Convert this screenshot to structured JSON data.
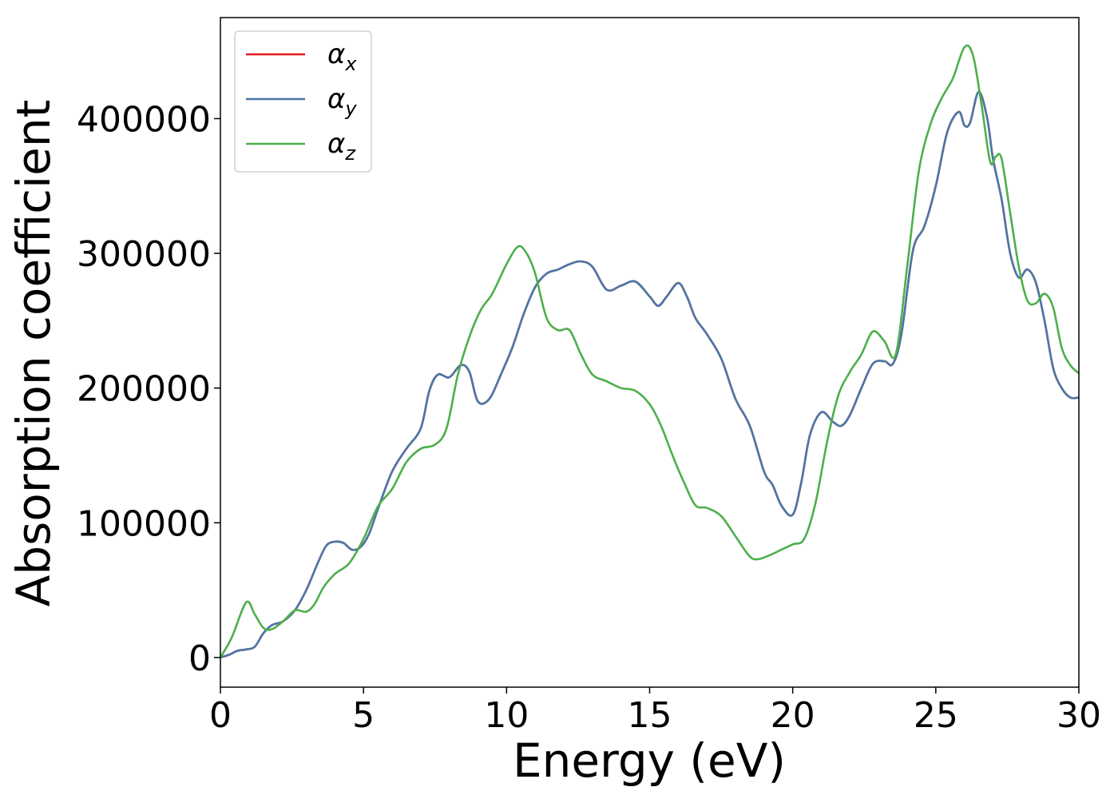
{
  "chart_data": {
    "type": "line",
    "xlabel": "Energy (eV)",
    "ylabel": "Absorption coefficient",
    "xlim": [
      0,
      30
    ],
    "ylim": [
      -22000,
      475000
    ],
    "xticks": [
      0,
      5,
      10,
      15,
      20,
      25,
      30
    ],
    "xtick_labels": [
      "0",
      "5",
      "10",
      "15",
      "20",
      "25",
      "30"
    ],
    "yticks": [
      0,
      100000,
      200000,
      300000,
      400000
    ],
    "ytick_labels": [
      "0",
      "100000",
      "200000",
      "300000",
      "400000"
    ],
    "grid": false,
    "legend_position": "top-left",
    "series": [
      {
        "name": "αx",
        "base": "α",
        "sub": "x",
        "color": "#e41a1c",
        "x": [
          0,
          0.3,
          0.6,
          0.9,
          1.2,
          1.5,
          1.8,
          2.2,
          2.6,
          3.0,
          3.4,
          3.7,
          4.0,
          4.3,
          4.6,
          4.9,
          5.2,
          5.5,
          6.0,
          6.5,
          7.0,
          7.3,
          7.6,
          8.0,
          8.4,
          8.7,
          9.0,
          9.4,
          9.8,
          10.2,
          10.6,
          11.0,
          11.4,
          11.8,
          12.2,
          12.6,
          13.0,
          13.5,
          14.0,
          14.5,
          15.0,
          15.3,
          15.6,
          16.0,
          16.3,
          16.6,
          17.0,
          17.5,
          18.0,
          18.5,
          19.0,
          19.3,
          19.6,
          20.0,
          20.3,
          20.6,
          21.0,
          21.4,
          21.7,
          22.0,
          22.4,
          22.8,
          23.2,
          23.5,
          23.8,
          24.2,
          24.6,
          25.0,
          25.4,
          25.8,
          26.0,
          26.2,
          26.5,
          26.8,
          27.0,
          27.3,
          27.6,
          27.9,
          28.2,
          28.5,
          28.8,
          29.1,
          29.4,
          29.7,
          30.0
        ],
        "y": [
          0,
          2000,
          5000,
          6000,
          8000,
          18000,
          24000,
          27000,
          35000,
          50000,
          70000,
          83000,
          86000,
          85000,
          80000,
          82000,
          92000,
          110000,
          138000,
          155000,
          170000,
          198000,
          210000,
          208000,
          217000,
          212000,
          190000,
          192000,
          210000,
          230000,
          255000,
          275000,
          285000,
          288000,
          292000,
          294000,
          290000,
          273000,
          276000,
          279000,
          268000,
          261000,
          268000,
          278000,
          268000,
          252000,
          240000,
          222000,
          192000,
          172000,
          138000,
          128000,
          113000,
          106000,
          130000,
          165000,
          182000,
          175000,
          172000,
          180000,
          200000,
          218000,
          220000,
          218000,
          240000,
          302000,
          320000,
          350000,
          390000,
          405000,
          395000,
          397000,
          420000,
          400000,
          370000,
          340000,
          300000,
          282000,
          288000,
          278000,
          250000,
          215000,
          200000,
          193000,
          193000
        ]
      },
      {
        "name": "αy",
        "base": "α",
        "sub": "y",
        "color": "#4a77a8",
        "x": [
          0,
          0.3,
          0.6,
          0.9,
          1.2,
          1.5,
          1.8,
          2.2,
          2.6,
          3.0,
          3.4,
          3.7,
          4.0,
          4.3,
          4.6,
          4.9,
          5.2,
          5.5,
          6.0,
          6.5,
          7.0,
          7.3,
          7.6,
          8.0,
          8.4,
          8.7,
          9.0,
          9.4,
          9.8,
          10.2,
          10.6,
          11.0,
          11.4,
          11.8,
          12.2,
          12.6,
          13.0,
          13.5,
          14.0,
          14.5,
          15.0,
          15.3,
          15.6,
          16.0,
          16.3,
          16.6,
          17.0,
          17.5,
          18.0,
          18.5,
          19.0,
          19.3,
          19.6,
          20.0,
          20.3,
          20.6,
          21.0,
          21.4,
          21.7,
          22.0,
          22.4,
          22.8,
          23.2,
          23.5,
          23.8,
          24.2,
          24.6,
          25.0,
          25.4,
          25.8,
          26.0,
          26.2,
          26.5,
          26.8,
          27.0,
          27.3,
          27.6,
          27.9,
          28.2,
          28.5,
          28.8,
          29.1,
          29.4,
          29.7,
          30.0
        ],
        "y": [
          0,
          2000,
          5000,
          6000,
          8000,
          18000,
          24000,
          27000,
          35000,
          50000,
          70000,
          83000,
          86000,
          85000,
          80000,
          82000,
          92000,
          110000,
          138000,
          155000,
          170000,
          198000,
          210000,
          208000,
          217000,
          212000,
          190000,
          192000,
          210000,
          230000,
          255000,
          275000,
          285000,
          288000,
          292000,
          294000,
          290000,
          273000,
          276000,
          279000,
          268000,
          261000,
          268000,
          278000,
          268000,
          252000,
          240000,
          222000,
          192000,
          172000,
          138000,
          128000,
          113000,
          106000,
          130000,
          165000,
          182000,
          175000,
          172000,
          180000,
          200000,
          218000,
          220000,
          218000,
          240000,
          302000,
          320000,
          350000,
          390000,
          405000,
          395000,
          397000,
          420000,
          400000,
          370000,
          340000,
          300000,
          282000,
          288000,
          278000,
          250000,
          215000,
          200000,
          193000,
          193000
        ]
      },
      {
        "name": "αz",
        "base": "α",
        "sub": "z",
        "color": "#4daf4a",
        "x": [
          0,
          0.4,
          0.9,
          1.2,
          1.5,
          1.8,
          2.2,
          2.6,
          3.0,
          3.3,
          3.6,
          4.0,
          4.5,
          5.0,
          5.5,
          6.0,
          6.5,
          7.0,
          7.5,
          7.9,
          8.3,
          8.7,
          9.1,
          9.5,
          10.0,
          10.4,
          10.7,
          11.0,
          11.4,
          11.8,
          12.2,
          12.6,
          13.0,
          13.5,
          14.0,
          14.5,
          15.0,
          15.4,
          15.8,
          16.2,
          16.6,
          17.0,
          17.5,
          18.0,
          18.5,
          18.8,
          19.2,
          19.6,
          20.0,
          20.4,
          20.8,
          21.2,
          21.6,
          22.0,
          22.4,
          22.8,
          23.2,
          23.6,
          24.0,
          24.4,
          24.8,
          25.2,
          25.6,
          26.0,
          26.3,
          26.6,
          26.9,
          27.1,
          27.3,
          27.6,
          27.9,
          28.2,
          28.5,
          28.8,
          29.1,
          29.4,
          29.7,
          30.0
        ],
        "y": [
          0,
          15000,
          41000,
          32000,
          22000,
          21000,
          27000,
          35000,
          34000,
          40000,
          52000,
          62000,
          70000,
          88000,
          112000,
          125000,
          145000,
          155000,
          158000,
          170000,
          210000,
          238000,
          258000,
          270000,
          292000,
          305000,
          300000,
          285000,
          252000,
          243000,
          243000,
          225000,
          210000,
          205000,
          200000,
          198000,
          188000,
          172000,
          150000,
          130000,
          113000,
          111000,
          105000,
          90000,
          75000,
          73000,
          76000,
          80000,
          84000,
          88000,
          115000,
          160000,
          195000,
          212000,
          225000,
          242000,
          235000,
          225000,
          290000,
          360000,
          395000,
          415000,
          430000,
          453000,
          447000,
          410000,
          368000,
          372000,
          370000,
          330000,
          290000,
          265000,
          263000,
          270000,
          260000,
          230000,
          217000,
          211000
        ]
      }
    ]
  }
}
